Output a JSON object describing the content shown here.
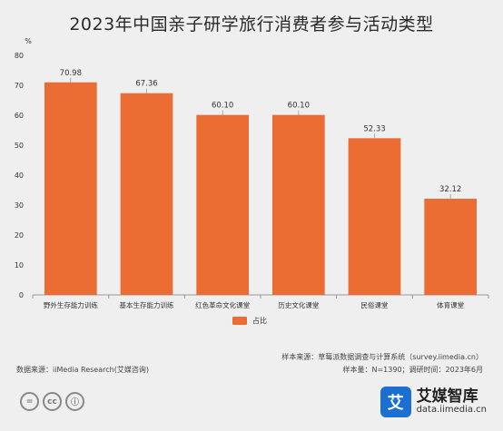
{
  "title": "2023年中国亲子研学旅行消费者参与活动类型",
  "chart_data": {
    "type": "bar",
    "title": "2023年中国亲子研学旅行消费者参与活动类型",
    "ylabel": "%",
    "ylim": [
      0,
      80
    ],
    "yticks": [
      0,
      10,
      20,
      30,
      40,
      50,
      60,
      70,
      80
    ],
    "categories": [
      "野外生存能力训练",
      "基本生存能力训练",
      "红色革命文化课堂",
      "历史文化课堂",
      "民俗课堂",
      "体育课堂"
    ],
    "series": [
      {
        "name": "占比",
        "values": [
          70.98,
          67.36,
          60.1,
          60.1,
          52.33,
          32.12
        ],
        "labels": [
          "70.98",
          "67.36",
          "60.10",
          "60.10",
          "52.33",
          "32.12"
        ]
      }
    ],
    "bar_color": "#ec6d33",
    "legend_position": "bottom",
    "grid": false
  },
  "footer": {
    "sample_source": "样本来源：草莓派数据调查与计算系统（survey.iimedia.cn）",
    "sample_size": "样本量：N=1390；调研时间：2023年6月",
    "data_source": "数据来源：iiMedia Research(艾媒咨询)"
  },
  "brand": {
    "mark": "艾",
    "name": "艾媒智库",
    "url": "data.iimedia.cn"
  },
  "license_icons": [
    "=",
    "cc",
    "ⓘ"
  ]
}
